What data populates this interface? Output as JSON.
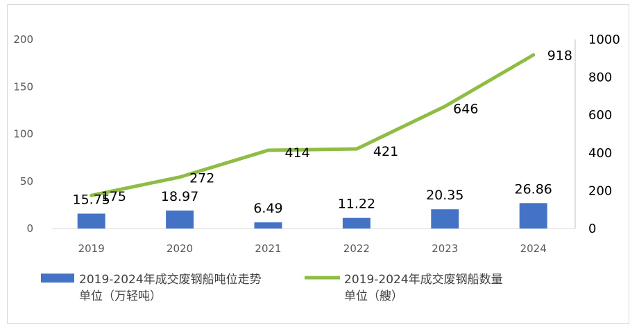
{
  "chart_data": {
    "type": "bar+line",
    "categories": [
      "2019",
      "2020",
      "2021",
      "2022",
      "2023",
      "2024"
    ],
    "series": [
      {
        "name_line1": "2019-2024年成交废钢船吨位走势",
        "name_line2": "单位（万轻吨）",
        "type": "bar",
        "axis": "left",
        "color": "#4472c4",
        "values": [
          15.75,
          18.97,
          6.49,
          11.22,
          20.35,
          26.86
        ],
        "labels": [
          "15.75",
          "18.97",
          "6.49",
          "11.22",
          "20.35",
          "26.86"
        ]
      },
      {
        "name_line1": "2019-2024年成交废钢船数量",
        "name_line2": "单位（艘）",
        "type": "line",
        "axis": "right",
        "color": "#8fbc45",
        "values": [
          175,
          272,
          414,
          421,
          646,
          918
        ],
        "labels": [
          "175",
          "272",
          "414",
          "421",
          "646",
          "918"
        ]
      }
    ],
    "y_left": {
      "min": 0,
      "max": 200,
      "ticks": [
        "0",
        "50",
        "100",
        "150",
        "200"
      ]
    },
    "y_right": {
      "min": 0,
      "max": 1000,
      "ticks": [
        "0",
        "200",
        "400",
        "600",
        "800",
        "1000"
      ]
    },
    "legend_position": "bottom",
    "grid": false
  }
}
